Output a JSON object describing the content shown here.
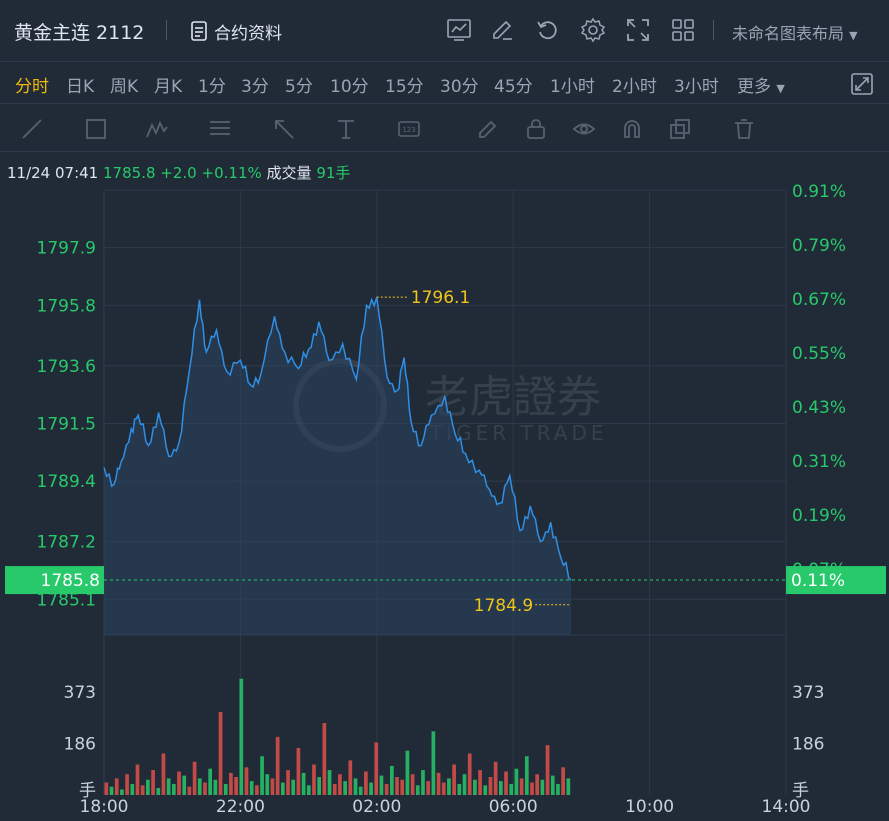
{
  "header": {
    "title": "黄金主连 2112",
    "contract_info_label": "合约资料",
    "layout_menu_label": "未命名图表布局",
    "icons": [
      "chart-line-icon",
      "edit-icon",
      "undo-icon",
      "settings-icon",
      "fullscreen-icon",
      "grid-layout-icon"
    ]
  },
  "periods": [
    "分时",
    "日K",
    "周K",
    "月K",
    "1分",
    "3分",
    "5分",
    "10分",
    "15分",
    "30分",
    "45分",
    "1小时",
    "2小时",
    "3小时",
    "更多"
  ],
  "active_period": "分时",
  "drawing_tools": [
    "line-tool-icon",
    "rect-tool-icon",
    "pattern-tool-icon",
    "fib-tool-icon",
    "arrow-tool-icon",
    "text-tool-icon",
    "price-label-tool-icon",
    "pen-icon",
    "lock-icon",
    "eye-icon",
    "magnet-icon",
    "copy-icon",
    "trash-icon"
  ],
  "quote": {
    "time": "11/24 07:41",
    "price": "1785.8",
    "change": "+2.0",
    "change_pct": "+0.11%",
    "volume_label": "成交量",
    "volume_value": "91手"
  },
  "watermark": {
    "cn": "老虎證券",
    "en": "TIGER TRADE"
  },
  "colors": {
    "up": "#27c96a",
    "down": "#e0504a",
    "line": "#2f8fe6",
    "marker": "#f0c419",
    "bg": "#212b38"
  },
  "chart_data": {
    "type": "line",
    "price_axis": {
      "ticks": [
        "1797.9",
        "1795.8",
        "1793.6",
        "1791.5",
        "1789.4",
        "1787.2",
        "1785.1"
      ],
      "range": [
        1783.8,
        1800.0
      ]
    },
    "pct_axis": {
      "ticks": [
        "0.91%",
        "0.79%",
        "0.67%",
        "0.55%",
        "0.43%",
        "0.31%",
        "0.19%",
        "0.07%"
      ]
    },
    "current_price_label": "1785.8",
    "current_pct_label": "0.11%",
    "high_label": "1796.1",
    "low_label": "1784.9",
    "x_ticks": [
      "18:00",
      "22:00",
      "02:00",
      "06:00",
      "10:00",
      "14:00"
    ],
    "x_hours_span": 20,
    "series": [
      {
        "x_hours": [
          0.0,
          0.3,
          0.5,
          0.8,
          1.0,
          1.3,
          1.6,
          1.9,
          2.2,
          2.5,
          2.8,
          3.0,
          3.3,
          3.6,
          4.0,
          4.3,
          4.6,
          5.0,
          5.3,
          5.7,
          6.0,
          6.3,
          6.6,
          7.0,
          7.4,
          7.7,
          8.0,
          8.3,
          8.6,
          8.8,
          9.0,
          9.3,
          9.6,
          10.0,
          10.3,
          10.6,
          11.0,
          11.3,
          11.6,
          11.9,
          12.2,
          12.5,
          12.8,
          13.1,
          13.4,
          13.7
        ],
        "y": [
          1789.9,
          1789.3,
          1790.1,
          1791.3,
          1791.8,
          1790.7,
          1791.9,
          1790.3,
          1790.8,
          1793.4,
          1796.0,
          1794.1,
          1794.9,
          1793.4,
          1793.8,
          1792.9,
          1793.3,
          1795.4,
          1794.1,
          1793.5,
          1794.2,
          1795.2,
          1793.8,
          1794.4,
          1793.1,
          1795.8,
          1796.1,
          1793.2,
          1792.7,
          1793.9,
          1791.6,
          1790.7,
          1791.8,
          1792.5,
          1791.1,
          1790.4,
          1789.8,
          1789.1,
          1788.6,
          1789.6,
          1787.6,
          1788.5,
          1787.2,
          1787.9,
          1786.6,
          1785.8
        ]
      }
    ],
    "volume": {
      "ticks": [
        "373",
        "186"
      ],
      "unit_label": "手",
      "range": [
        0,
        560
      ],
      "values": [
        45,
        30,
        60,
        20,
        75,
        40,
        110,
        35,
        55,
        90,
        25,
        150,
        60,
        40,
        85,
        70,
        30,
        120,
        60,
        45,
        95,
        55,
        300,
        40,
        80,
        65,
        420,
        100,
        50,
        35,
        140,
        75,
        60,
        210,
        45,
        90,
        55,
        170,
        80,
        35,
        110,
        65,
        260,
        90,
        40,
        75,
        50,
        125,
        60,
        30,
        85,
        45,
        190,
        70,
        40,
        105,
        65,
        55,
        160,
        75,
        35,
        90,
        50,
        230,
        80,
        45,
        60,
        110,
        40,
        75,
        150,
        55,
        90,
        35,
        65,
        120,
        50,
        85,
        40,
        95,
        60,
        140,
        45,
        75,
        55,
        180,
        70,
        40,
        100,
        60
      ],
      "directions": [
        "d",
        "u",
        "d",
        "u",
        "d",
        "u",
        "d",
        "d",
        "u",
        "d",
        "u",
        "d",
        "u",
        "u",
        "d",
        "u",
        "d",
        "d",
        "u",
        "d",
        "u",
        "u",
        "d",
        "u",
        "d",
        "d",
        "u",
        "d",
        "u",
        "d",
        "u",
        "u",
        "d",
        "d",
        "u",
        "d",
        "u",
        "d",
        "u",
        "u",
        "d",
        "u",
        "d",
        "u",
        "d",
        "d",
        "u",
        "d",
        "u",
        "u",
        "d",
        "u",
        "d",
        "u",
        "d",
        "u",
        "d",
        "d",
        "u",
        "d",
        "u",
        "u",
        "d",
        "u",
        "d",
        "d",
        "u",
        "d",
        "u",
        "u",
        "d",
        "u",
        "d",
        "u",
        "d",
        "d",
        "u",
        "d",
        "u",
        "u",
        "d",
        "u",
        "d",
        "d",
        "u",
        "d",
        "u",
        "u",
        "d",
        "u"
      ]
    }
  }
}
